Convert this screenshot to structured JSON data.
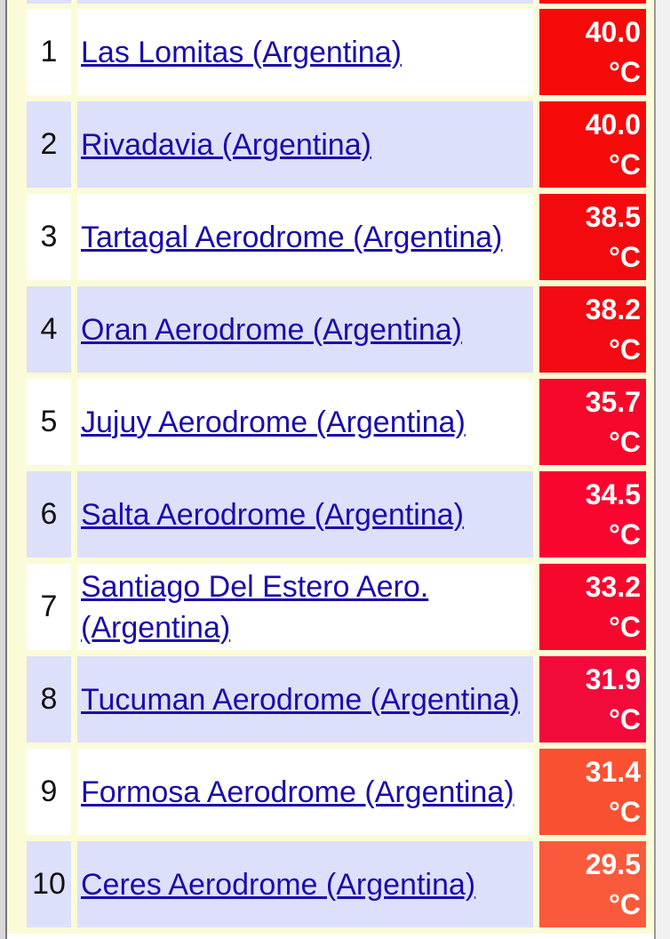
{
  "table": {
    "rows": [
      {
        "rank": "1",
        "station": "Las Lomitas (Argentina)",
        "temperature": "40.0 °C",
        "color": "#f60a0a"
      },
      {
        "rank": "2",
        "station": "Rivadavia (Argentina)",
        "temperature": "40.0 °C",
        "color": "#f60a0a"
      },
      {
        "rank": "3",
        "station": "Tartagal Aerodrome (Argentina)",
        "temperature": "38.5 °C",
        "color": "#f30a0f"
      },
      {
        "rank": "4",
        "station": "Oran Aerodrome (Argentina)",
        "temperature": "38.2 °C",
        "color": "#f30a12"
      },
      {
        "rank": "5",
        "station": "Jujuy Aerodrome (Argentina)",
        "temperature": "35.7 °C",
        "color": "#f5082a"
      },
      {
        "rank": "6",
        "station": "Salta Aerodrome (Argentina)",
        "temperature": "34.5 °C",
        "color": "#fa0530"
      },
      {
        "rank": "7",
        "station": "Santiago Del Estero Aero. (Argentina)",
        "temperature": "33.2 °C",
        "color": "#f5082c"
      },
      {
        "rank": "8",
        "station": "Tucuman Aerodrome (Argentina)",
        "temperature": "31.9 °C",
        "color": "#f20a3a"
      },
      {
        "rank": "9",
        "station": "Formosa Aerodrome (Argentina)",
        "temperature": "31.4 °C",
        "color": "#fa5032"
      },
      {
        "rank": "10",
        "station": "Ceres Aerodrome (Argentina)",
        "temperature": "29.5 °C",
        "color": "#fa5a3c"
      }
    ]
  }
}
